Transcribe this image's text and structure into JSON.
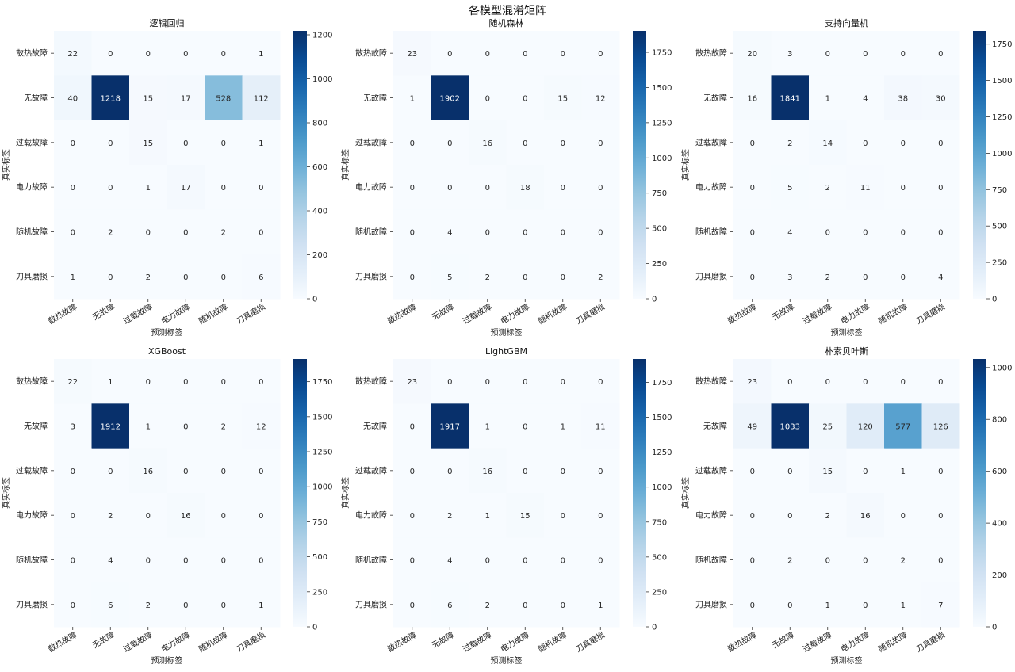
{
  "page": {
    "suptitle": "各模型混淆矩阵"
  },
  "chart_data": [
    {
      "type": "heatmap",
      "title": "逻辑回归",
      "xlabel": "预测标签",
      "ylabel": "真实标签",
      "x_categories": [
        "散热故障",
        "无故障",
        "过载故障",
        "电力故障",
        "随机故障",
        "刀具磨损"
      ],
      "y_categories": [
        "散热故障",
        "无故障",
        "过载故障",
        "电力故障",
        "随机故障",
        "刀具磨损"
      ],
      "values": [
        [
          22,
          0,
          0,
          0,
          0,
          1
        ],
        [
          40,
          1218,
          15,
          17,
          528,
          112
        ],
        [
          0,
          0,
          15,
          0,
          0,
          1
        ],
        [
          0,
          0,
          1,
          17,
          0,
          0
        ],
        [
          0,
          2,
          0,
          0,
          2,
          0
        ],
        [
          1,
          0,
          2,
          0,
          0,
          6
        ]
      ],
      "colorbar": {
        "ticks": [
          0,
          200,
          400,
          600,
          800,
          1000,
          1200
        ],
        "range": [
          0,
          1218
        ]
      },
      "colormap": "Blues"
    },
    {
      "type": "heatmap",
      "title": "随机森林",
      "xlabel": "预测标签",
      "ylabel": "真实标签",
      "x_categories": [
        "散热故障",
        "无故障",
        "过载故障",
        "电力故障",
        "随机故障",
        "刀具磨损"
      ],
      "y_categories": [
        "散热故障",
        "无故障",
        "过载故障",
        "电力故障",
        "随机故障",
        "刀具磨损"
      ],
      "values": [
        [
          23,
          0,
          0,
          0,
          0,
          0
        ],
        [
          1,
          1902,
          0,
          0,
          15,
          12
        ],
        [
          0,
          0,
          16,
          0,
          0,
          0
        ],
        [
          0,
          0,
          0,
          18,
          0,
          0
        ],
        [
          0,
          4,
          0,
          0,
          0,
          0
        ],
        [
          0,
          5,
          2,
          0,
          0,
          2
        ]
      ],
      "colorbar": {
        "ticks": [
          0,
          250,
          500,
          750,
          1000,
          1250,
          1500,
          1750
        ],
        "range": [
          0,
          1902
        ]
      },
      "colormap": "Blues"
    },
    {
      "type": "heatmap",
      "title": "支持向量机",
      "xlabel": "预测标签",
      "ylabel": "真实标签",
      "x_categories": [
        "散热故障",
        "无故障",
        "过载故障",
        "电力故障",
        "随机故障",
        "刀具磨损"
      ],
      "y_categories": [
        "散热故障",
        "无故障",
        "过载故障",
        "电力故障",
        "随机故障",
        "刀具磨损"
      ],
      "values": [
        [
          20,
          3,
          0,
          0,
          0,
          0
        ],
        [
          16,
          1841,
          1,
          4,
          38,
          30
        ],
        [
          0,
          2,
          14,
          0,
          0,
          0
        ],
        [
          0,
          5,
          2,
          11,
          0,
          0
        ],
        [
          0,
          4,
          0,
          0,
          0,
          0
        ],
        [
          0,
          3,
          2,
          0,
          0,
          4
        ]
      ],
      "colorbar": {
        "ticks": [
          0,
          250,
          500,
          750,
          1000,
          1250,
          1500,
          1750
        ],
        "range": [
          0,
          1841
        ]
      },
      "colormap": "Blues"
    },
    {
      "type": "heatmap",
      "title": "XGBoost",
      "xlabel": "预测标签",
      "ylabel": "真实标签",
      "x_categories": [
        "散热故障",
        "无故障",
        "过载故障",
        "电力故障",
        "随机故障",
        "刀具磨损"
      ],
      "y_categories": [
        "散热故障",
        "无故障",
        "过载故障",
        "电力故障",
        "随机故障",
        "刀具磨损"
      ],
      "values": [
        [
          22,
          1,
          0,
          0,
          0,
          0
        ],
        [
          3,
          1912,
          1,
          0,
          2,
          12
        ],
        [
          0,
          0,
          16,
          0,
          0,
          0
        ],
        [
          0,
          2,
          0,
          16,
          0,
          0
        ],
        [
          0,
          4,
          0,
          0,
          0,
          0
        ],
        [
          0,
          6,
          2,
          0,
          0,
          1
        ]
      ],
      "colorbar": {
        "ticks": [
          0,
          250,
          500,
          750,
          1000,
          1250,
          1500,
          1750
        ],
        "range": [
          0,
          1912
        ]
      },
      "colormap": "Blues"
    },
    {
      "type": "heatmap",
      "title": "LightGBM",
      "xlabel": "预测标签",
      "ylabel": "真实标签",
      "x_categories": [
        "散热故障",
        "无故障",
        "过载故障",
        "电力故障",
        "随机故障",
        "刀具磨损"
      ],
      "y_categories": [
        "散热故障",
        "无故障",
        "过载故障",
        "电力故障",
        "随机故障",
        "刀具磨损"
      ],
      "values": [
        [
          23,
          0,
          0,
          0,
          0,
          0
        ],
        [
          0,
          1917,
          1,
          0,
          1,
          11
        ],
        [
          0,
          0,
          16,
          0,
          0,
          0
        ],
        [
          0,
          2,
          1,
          15,
          0,
          0
        ],
        [
          0,
          4,
          0,
          0,
          0,
          0
        ],
        [
          0,
          6,
          2,
          0,
          0,
          1
        ]
      ],
      "colorbar": {
        "ticks": [
          0,
          250,
          500,
          750,
          1000,
          1250,
          1500,
          1750
        ],
        "range": [
          0,
          1917
        ]
      },
      "colormap": "Blues"
    },
    {
      "type": "heatmap",
      "title": "朴素贝叶斯",
      "xlabel": "预测标签",
      "ylabel": "真实标签",
      "x_categories": [
        "散热故障",
        "无故障",
        "过载故障",
        "电力故障",
        "随机故障",
        "刀具磨损"
      ],
      "y_categories": [
        "散热故障",
        "无故障",
        "过载故障",
        "电力故障",
        "随机故障",
        "刀具磨损"
      ],
      "values": [
        [
          23,
          0,
          0,
          0,
          0,
          0
        ],
        [
          49,
          1033,
          25,
          120,
          577,
          126
        ],
        [
          0,
          0,
          15,
          0,
          1,
          0
        ],
        [
          0,
          0,
          2,
          16,
          0,
          0
        ],
        [
          0,
          2,
          0,
          0,
          2,
          0
        ],
        [
          0,
          0,
          1,
          0,
          1,
          7
        ]
      ],
      "colorbar": {
        "ticks": [
          0,
          200,
          400,
          600,
          800,
          1000
        ],
        "range": [
          0,
          1033
        ]
      },
      "colormap": "Blues"
    }
  ]
}
